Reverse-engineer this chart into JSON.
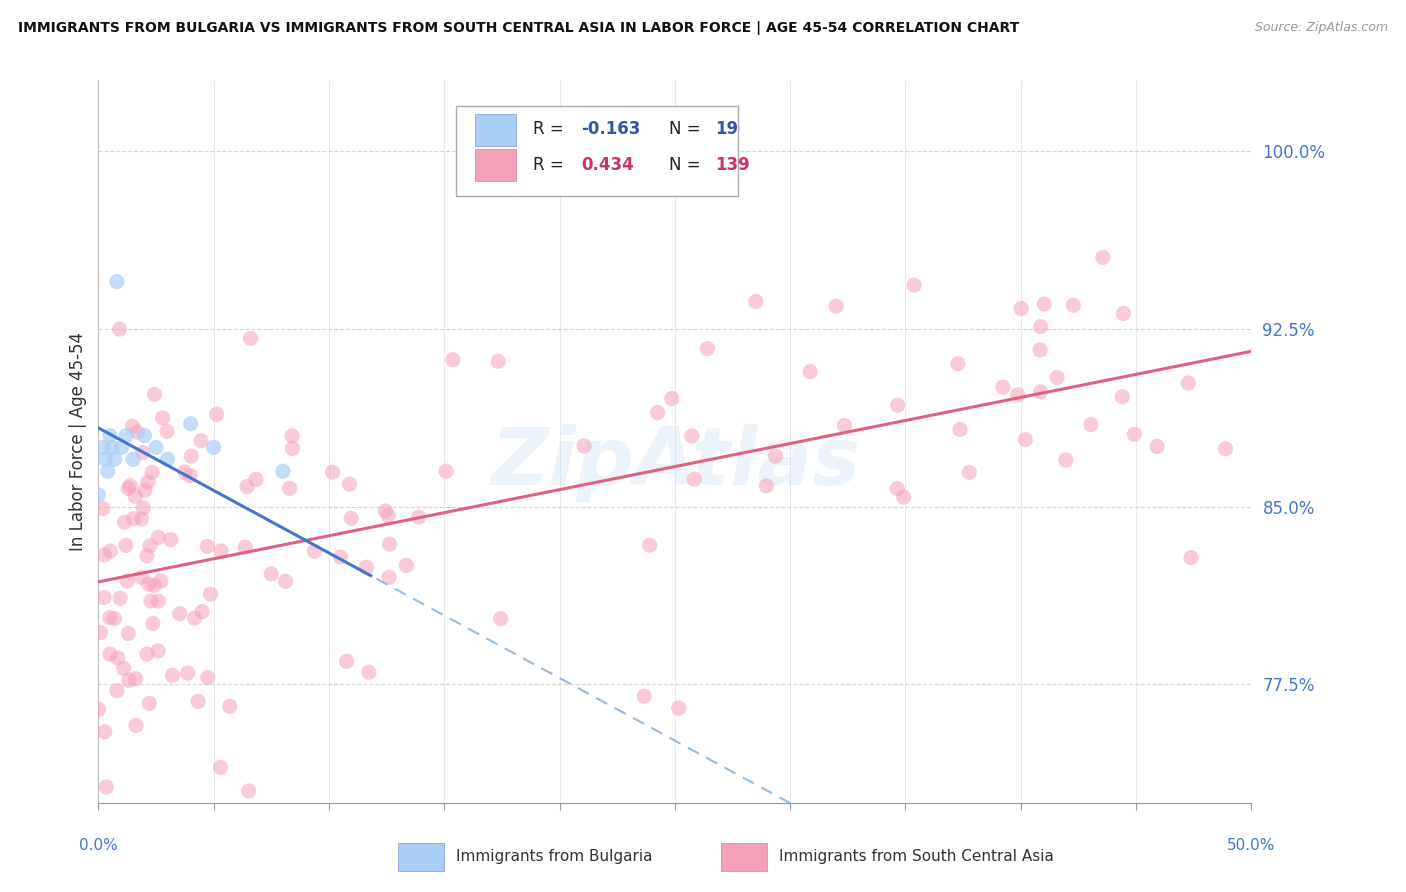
{
  "title": "IMMIGRANTS FROM BULGARIA VS IMMIGRANTS FROM SOUTH CENTRAL ASIA IN LABOR FORCE | AGE 45-54 CORRELATION CHART",
  "source": "Source: ZipAtlas.com",
  "ylabel": "In Labor Force | Age 45-54",
  "y_ticks": [
    0.775,
    0.85,
    0.925,
    1.0
  ],
  "y_tick_labels": [
    "77.5%",
    "85.0%",
    "92.5%",
    "100.0%"
  ],
  "x_range": [
    0.0,
    0.5
  ],
  "y_range": [
    0.725,
    1.03
  ],
  "bulgaria_color": "#aacef5",
  "bulgaria_edge": "#aacef5",
  "sca_color": "#f5a0b8",
  "sca_edge": "#f5a0b8",
  "trend_bulgaria_solid_color": "#4477cc",
  "trend_bulgaria_dash_color": "#99bbdd",
  "trend_sca_color": "#e06080",
  "R_bulgaria": -0.163,
  "N_bulgaria": 19,
  "R_sca": 0.434,
  "N_sca": 139,
  "bg_color": "#ffffff",
  "grid_color": "#cccccc",
  "watermark": "ZipAtlas",
  "fig_bg": "#ffffff",
  "dot_size": 120,
  "dot_alpha": 0.55,
  "legend_R_bulgaria_color": "#3355aa",
  "legend_R_sca_color": "#cc3366",
  "legend_N_bulgaria_color": "#3355aa",
  "legend_N_sca_color": "#cc3366"
}
